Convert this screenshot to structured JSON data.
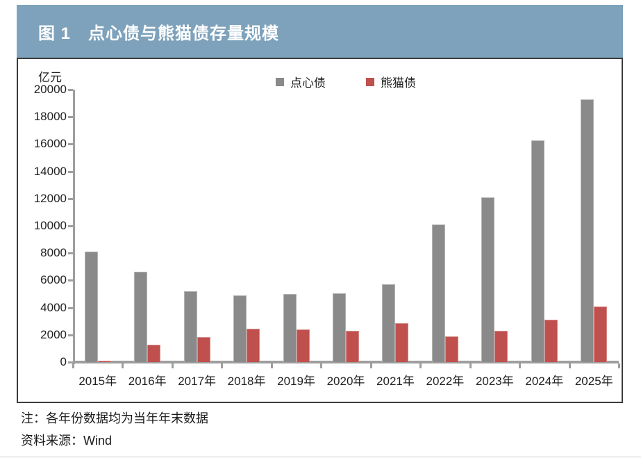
{
  "colors": {
    "header_bg": "#7EA2BB",
    "axis": "#9e9e9e",
    "dianxin_gray": "#8A8A8A",
    "panda_red": "#C0504D"
  },
  "chart_data": {
    "type": "bar",
    "title": "图 1　点心债与熊猫债存量规模",
    "ylabel": "亿元",
    "categories": [
      "2015年",
      "2016年",
      "2017年",
      "2018年",
      "2019年",
      "2020年",
      "2021年",
      "2022年",
      "2023年",
      "2024年",
      "2025年"
    ],
    "series": [
      {
        "name": "点心债",
        "color": "#8A8A8A",
        "values": [
          8100,
          6650,
          5200,
          4900,
          5000,
          5050,
          5700,
          10100,
          12100,
          16300,
          19300
        ]
      },
      {
        "name": "熊猫债",
        "color": "#C0504D",
        "values": [
          80,
          1300,
          1850,
          2450,
          2400,
          2300,
          2850,
          1900,
          2300,
          3100,
          4100
        ]
      }
    ],
    "ylim": [
      0,
      20000
    ],
    "ytick_step": 2000,
    "legend_position": "top-center",
    "grid": false
  },
  "footer": {
    "note": "注：各年份数据均为当年年末数据",
    "source": "资料来源：Wind"
  }
}
